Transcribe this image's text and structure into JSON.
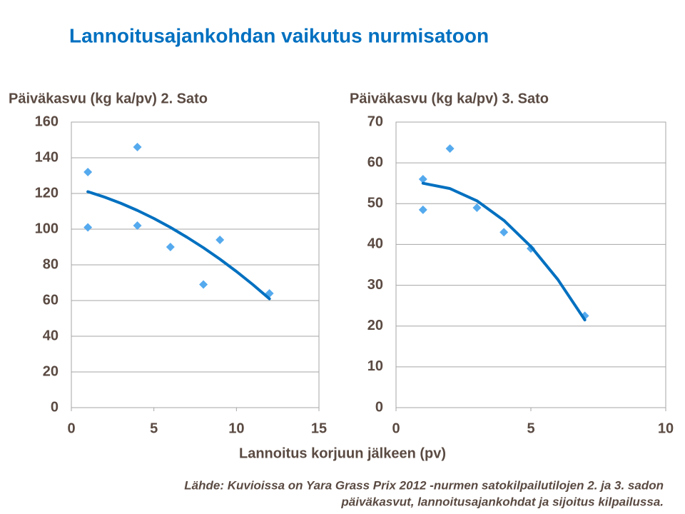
{
  "title": "Lannoitusajankohdan vaikutus nurmisatoon",
  "x_label": "Lannoitus korjuun jälkeen (pv)",
  "source": [
    "Lähde: Kuvioissa on Yara Grass Prix 2012 -nurmen satokilpailutilojen 2. ja 3. sadon",
    "päiväkasvut, lannoitusajankohdat ja sijoitus kilpailussa."
  ],
  "chart_data": [
    {
      "type": "scatter",
      "y_label": "Päiväkasvu (kg ka/pv) 2. Sato",
      "x": [
        1,
        1,
        4,
        4,
        6,
        8,
        9,
        12
      ],
      "values": [
        132,
        101,
        146,
        102,
        90,
        69,
        94,
        64
      ],
      "color": "#55aaee",
      "trendline": {
        "x": [
          1,
          2,
          3,
          4,
          5,
          6,
          7,
          8,
          9,
          10,
          11,
          12
        ],
        "values": [
          121,
          118,
          114.5,
          110.5,
          106,
          101,
          95.5,
          89.6,
          83.2,
          76.3,
          68.9,
          61
        ],
        "color": "#0070c0"
      },
      "xlim": [
        0,
        15
      ],
      "xticks": [
        0,
        5,
        10,
        15
      ],
      "ylim": [
        0,
        160
      ],
      "yticks": [
        0,
        20,
        40,
        60,
        80,
        100,
        120,
        140,
        160
      ],
      "grid": true
    },
    {
      "type": "scatter",
      "y_label": "Päiväkasvu (kg ka/pv) 3. Sato",
      "x": [
        1,
        1,
        2,
        3,
        4,
        5,
        7
      ],
      "values": [
        56,
        48.5,
        63.5,
        49,
        43,
        39,
        22.5
      ],
      "color": "#55aaee",
      "trendline": {
        "x": [
          1,
          2,
          3,
          4,
          5,
          6,
          7
        ],
        "values": [
          55,
          53.7,
          50.7,
          45.9,
          39.5,
          31.4,
          21.5
        ],
        "color": "#0070c0"
      },
      "xlim": [
        0,
        10
      ],
      "xticks": [
        0,
        5,
        10
      ],
      "ylim": [
        0,
        70
      ],
      "yticks": [
        0,
        10,
        20,
        30,
        40,
        50,
        60,
        70
      ],
      "grid": true
    }
  ]
}
